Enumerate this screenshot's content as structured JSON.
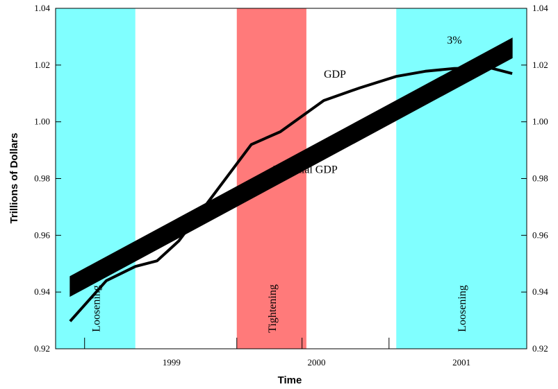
{
  "chart_data": {
    "type": "line",
    "title": "",
    "xlabel": "Time",
    "ylabel": "Trillions of Dollars",
    "ylim": [
      0.92,
      1.04
    ],
    "xlim": [
      1998.1,
      2001.35
    ],
    "y_ticks": [
      "0.92",
      "0.94",
      "0.96",
      "0.98",
      "1.00",
      "1.02",
      "1.04"
    ],
    "x_ticks": [
      {
        "x": 1998.9,
        "label": "1999"
      },
      {
        "x": 1999.9,
        "label": "2000"
      },
      {
        "x": 2000.9,
        "label": "2001"
      }
    ],
    "x_minor_ticks": [
      1998.3,
      1999.35,
      1999.8,
      2000.4
    ],
    "shaded_periods": [
      {
        "label": "Loosening",
        "x_start": 1998.1,
        "x_end": 1998.65,
        "color": "#80ffff"
      },
      {
        "label": "Tightening",
        "x_start": 1999.35,
        "x_end": 1999.83,
        "color": "#ff7a7a"
      },
      {
        "label": "Loosening",
        "x_start": 2000.45,
        "x_end": 2001.35,
        "color": "#80ffff"
      }
    ],
    "series": [
      {
        "name": "GDP",
        "x": [
          1998.2,
          1998.45,
          1998.65,
          1998.8,
          1998.95,
          1999.2,
          1999.45,
          1999.65,
          1999.95,
          2000.2,
          2000.45,
          2000.65,
          2000.85,
          2001.1,
          2001.25
        ],
        "y": [
          0.9297,
          0.944,
          0.949,
          0.951,
          0.958,
          0.975,
          0.992,
          0.9965,
          1.0075,
          1.012,
          1.016,
          1.0178,
          1.0188,
          1.019,
          1.017
        ]
      },
      {
        "name": "Potential GDP",
        "x": [
          1998.2,
          2001.25
        ],
        "y_low": [
          0.9385,
          1.0225
        ],
        "y_high": [
          0.9455,
          1.0295
        ]
      }
    ],
    "annotations": [
      {
        "text": "GDP",
        "x": 1999.95,
        "y": 1.0155
      },
      {
        "text": "Potential GDP",
        "x": 1999.6,
        "y": 0.982
      },
      {
        "text": "3%",
        "x": 2000.8,
        "y": 1.0275
      }
    ]
  }
}
